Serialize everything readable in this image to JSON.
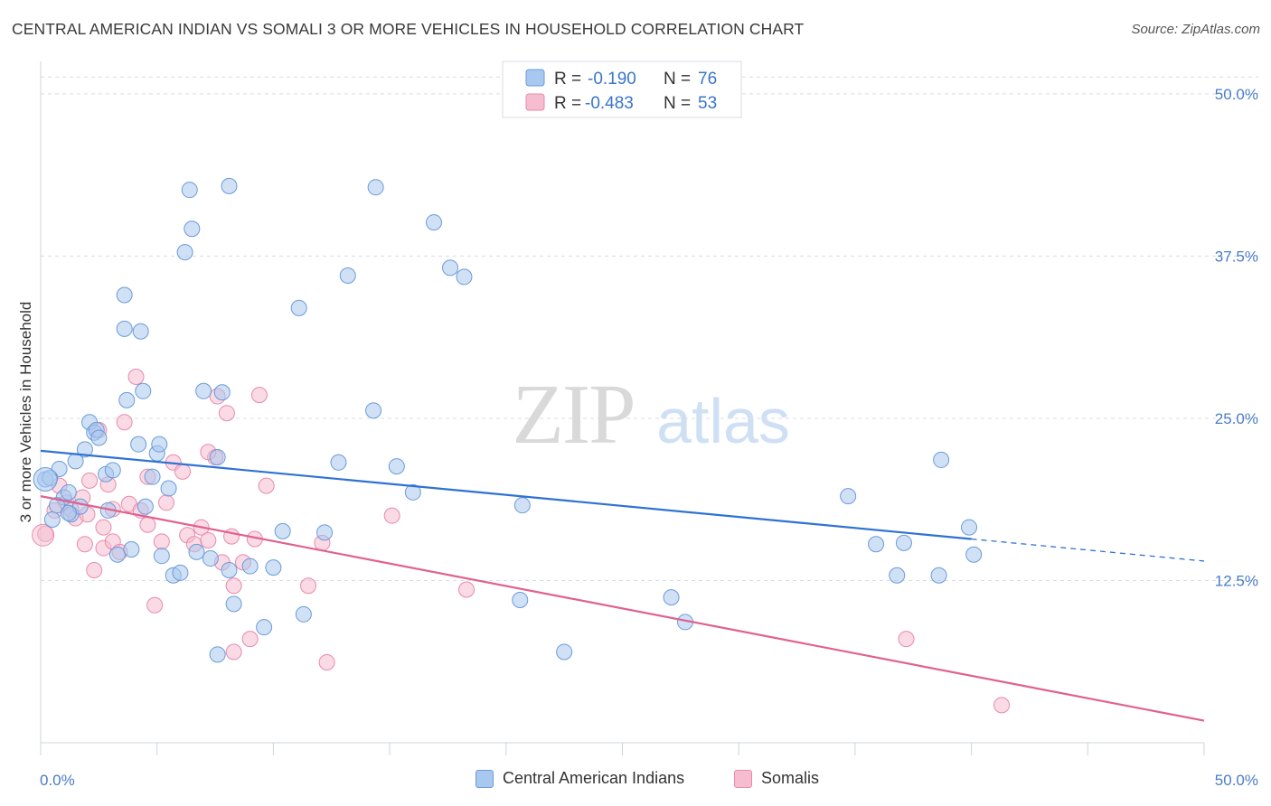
{
  "title": "CENTRAL AMERICAN INDIAN VS SOMALI 3 OR MORE VEHICLES IN HOUSEHOLD CORRELATION CHART",
  "source": "Source: ZipAtlas.com",
  "watermark": {
    "zip": "ZIP",
    "atlas": "atlas"
  },
  "colors": {
    "blue_fill": "#a9c8ef",
    "blue_stroke": "#6b9bd8",
    "blue_line": "#2e72d2",
    "pink_fill": "#f6bcd0",
    "pink_stroke": "#e98aab",
    "pink_line": "#e0618f",
    "tick_label": "#4a7cc9",
    "grid": "#d8dde3"
  },
  "legend_top": [
    {
      "r_label": "R =",
      "r_value": "-0.190",
      "n_label": "N =",
      "n_value": "76"
    },
    {
      "r_label": "R =",
      "r_value": "-0.483",
      "n_label": "N =",
      "n_value": "53"
    }
  ],
  "legend_bottom": [
    "Central American Indians",
    "Somalis"
  ],
  "chart_data": {
    "type": "scatter",
    "title": "CENTRAL AMERICAN INDIAN VS SOMALI 3 OR MORE VEHICLES IN HOUSEHOLD CORRELATION CHART",
    "xlabel": "",
    "ylabel": "3 or more Vehicles in Household",
    "xlim": [
      0,
      50
    ],
    "ylim": [
      0,
      52.5
    ],
    "x_tick_labels": [
      "0.0%",
      "50.0%"
    ],
    "y_ticks": [
      12.5,
      25.0,
      37.5,
      50.0
    ],
    "y_tick_labels": [
      "12.5%",
      "25.0%",
      "37.5%",
      "50.0%"
    ],
    "grid": true,
    "legend_position": "top-center",
    "series": [
      {
        "name": "Central American Indians",
        "r": -0.19,
        "n": 76,
        "trend": {
          "x": [
            0,
            40
          ],
          "y": [
            22.5,
            15.7
          ],
          "dashed_to": [
            50,
            14.0
          ]
        },
        "points": [
          [
            0.2,
            20.3
          ],
          [
            0.5,
            17.2
          ],
          [
            0.8,
            21.1
          ],
          [
            1.0,
            18.9
          ],
          [
            1.2,
            19.3
          ],
          [
            1.3,
            17.6
          ],
          [
            1.5,
            21.7
          ],
          [
            1.7,
            18.2
          ],
          [
            1.9,
            22.6
          ],
          [
            2.1,
            24.7
          ],
          [
            2.3,
            23.9
          ],
          [
            2.4,
            24.1
          ],
          [
            2.5,
            23.5
          ],
          [
            2.8,
            20.7
          ],
          [
            2.9,
            17.9
          ],
          [
            3.1,
            21.0
          ],
          [
            3.3,
            14.5
          ],
          [
            3.6,
            31.9
          ],
          [
            3.7,
            26.4
          ],
          [
            3.9,
            14.9
          ],
          [
            4.2,
            23.0
          ],
          [
            4.4,
            27.1
          ],
          [
            4.5,
            18.2
          ],
          [
            4.8,
            20.5
          ],
          [
            5.0,
            22.3
          ],
          [
            5.1,
            23.0
          ],
          [
            5.2,
            14.4
          ],
          [
            5.5,
            19.6
          ],
          [
            5.7,
            12.9
          ],
          [
            6.0,
            13.1
          ],
          [
            6.2,
            37.8
          ],
          [
            6.7,
            14.7
          ],
          [
            7.0,
            27.1
          ],
          [
            7.3,
            14.2
          ],
          [
            7.6,
            22.0
          ],
          [
            7.8,
            27.0
          ],
          [
            8.1,
            13.3
          ],
          [
            8.3,
            10.7
          ],
          [
            9.0,
            13.6
          ],
          [
            9.6,
            8.9
          ],
          [
            10.0,
            13.5
          ],
          [
            10.4,
            16.3
          ],
          [
            11.3,
            9.9
          ],
          [
            12.2,
            16.2
          ],
          [
            12.8,
            21.6
          ],
          [
            13.2,
            36.0
          ],
          [
            16.0,
            19.3
          ],
          [
            20.7,
            18.3
          ],
          [
            3.6,
            34.5
          ],
          [
            4.3,
            31.7
          ],
          [
            6.4,
            42.6
          ],
          [
            6.5,
            39.6
          ],
          [
            8.1,
            42.9
          ],
          [
            11.1,
            33.5
          ],
          [
            14.3,
            25.6
          ],
          [
            14.4,
            42.8
          ],
          [
            15.3,
            21.3
          ],
          [
            16.9,
            40.1
          ],
          [
            17.6,
            36.6
          ],
          [
            18.2,
            35.9
          ],
          [
            20.6,
            11.0
          ],
          [
            22.5,
            7.0
          ],
          [
            27.1,
            11.2
          ],
          [
            27.7,
            9.3
          ],
          [
            34.7,
            19.0
          ],
          [
            35.9,
            15.3
          ],
          [
            36.8,
            12.9
          ],
          [
            37.1,
            15.4
          ],
          [
            38.6,
            12.9
          ],
          [
            38.7,
            21.8
          ],
          [
            39.9,
            16.6
          ],
          [
            40.1,
            14.5
          ],
          [
            0.4,
            20.4
          ],
          [
            0.7,
            18.3
          ],
          [
            1.2,
            17.7
          ],
          [
            7.6,
            6.8
          ]
        ]
      },
      {
        "name": "Somalis",
        "r": -0.483,
        "n": 53,
        "trend": {
          "x": [
            0,
            50
          ],
          "y": [
            19.0,
            1.7
          ]
        },
        "points": [
          [
            0.2,
            16.1
          ],
          [
            0.6,
            17.9
          ],
          [
            0.8,
            19.8
          ],
          [
            1.1,
            18.5
          ],
          [
            1.3,
            18.0
          ],
          [
            1.5,
            17.3
          ],
          [
            1.8,
            18.9
          ],
          [
            1.9,
            15.3
          ],
          [
            2.0,
            17.6
          ],
          [
            2.1,
            20.2
          ],
          [
            2.3,
            13.3
          ],
          [
            2.5,
            24.1
          ],
          [
            2.7,
            15.0
          ],
          [
            2.9,
            19.9
          ],
          [
            3.1,
            15.5
          ],
          [
            3.4,
            14.7
          ],
          [
            3.6,
            24.7
          ],
          [
            3.8,
            18.4
          ],
          [
            4.1,
            28.2
          ],
          [
            4.3,
            17.9
          ],
          [
            4.6,
            20.5
          ],
          [
            4.9,
            10.6
          ],
          [
            5.2,
            15.5
          ],
          [
            5.4,
            18.5
          ],
          [
            5.7,
            21.6
          ],
          [
            6.1,
            20.9
          ],
          [
            6.3,
            16.0
          ],
          [
            6.6,
            15.3
          ],
          [
            6.9,
            16.6
          ],
          [
            7.2,
            15.6
          ],
          [
            7.5,
            22.0
          ],
          [
            7.6,
            26.7
          ],
          [
            7.8,
            13.9
          ],
          [
            8.0,
            25.4
          ],
          [
            8.2,
            15.9
          ],
          [
            8.3,
            12.1
          ],
          [
            8.7,
            13.9
          ],
          [
            9.0,
            8.0
          ],
          [
            9.2,
            15.7
          ],
          [
            9.4,
            26.8
          ],
          [
            9.7,
            19.8
          ],
          [
            11.5,
            12.1
          ],
          [
            12.1,
            15.4
          ],
          [
            12.3,
            6.2
          ],
          [
            15.1,
            17.5
          ],
          [
            18.3,
            11.8
          ],
          [
            37.2,
            8.0
          ],
          [
            41.3,
            2.9
          ],
          [
            3.1,
            18.0
          ],
          [
            2.7,
            16.6
          ],
          [
            4.6,
            16.8
          ],
          [
            7.2,
            22.4
          ],
          [
            8.3,
            7.0
          ]
        ]
      }
    ]
  }
}
